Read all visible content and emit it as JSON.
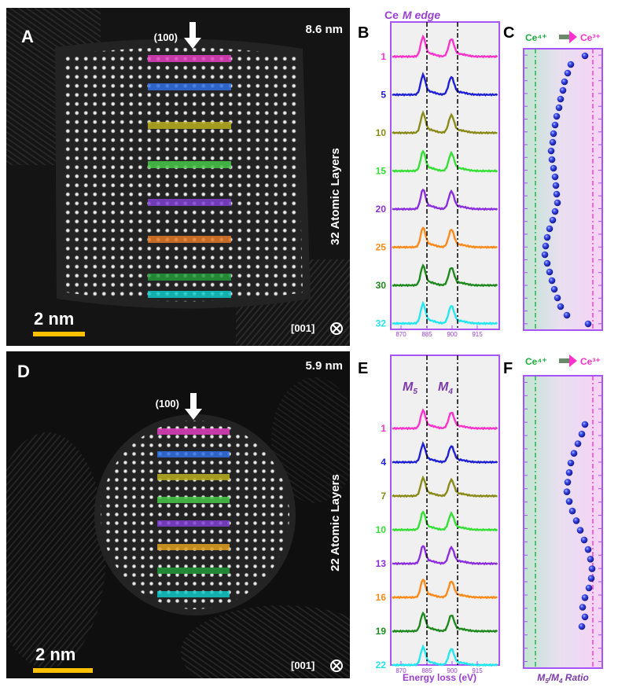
{
  "panels": {
    "A": {
      "letter": "A",
      "size_text": "8.6 nm",
      "direction": "(100)",
      "layers_text": "32 Atomic Layers",
      "scalebar_text": "2 nm",
      "zone_axis": "[001]",
      "stripe_colors": [
        "#e040c0",
        "#2f6fe0",
        "#b8b020",
        "#48c848",
        "#8040d0",
        "#e07828",
        "#229a3a",
        "#10c8c8"
      ]
    },
    "B": {
      "letter": "B",
      "title": "Ce",
      "title_em": "M edge",
      "x_ticks": [
        "870",
        "885",
        "900",
        "915"
      ],
      "spectra": [
        {
          "label": "1",
          "color": "#ff33cc"
        },
        {
          "label": "5",
          "color": "#1f1fd6"
        },
        {
          "label": "10",
          "color": "#8a8a18"
        },
        {
          "label": "15",
          "color": "#33e033"
        },
        {
          "label": "20",
          "color": "#8c2ee0"
        },
        {
          "label": "25",
          "color": "#ff8a1a"
        },
        {
          "label": "30",
          "color": "#1e8a1e"
        },
        {
          "label": "32",
          "color": "#22e6f0"
        }
      ]
    },
    "C": {
      "letter": "C",
      "ce4": "Ce⁴⁺",
      "ce3": "Ce³⁺"
    },
    "D": {
      "letter": "D",
      "size_text": "5.9 nm",
      "direction": "(100)",
      "layers_text": "22 Atomic Layers",
      "scalebar_text": "2 nm",
      "zone_axis": "[001]",
      "stripe_colors": [
        "#e040c0",
        "#2f6fe0",
        "#b8b020",
        "#48c848",
        "#8040d0",
        "#e0a020",
        "#229a3a",
        "#10c8c8"
      ]
    },
    "E": {
      "letter": "E",
      "peak1": "M",
      "peak1_sub": "5",
      "peak2": "M",
      "peak2_sub": "4",
      "x_ticks": [
        "870",
        "885",
        "900",
        "915"
      ],
      "xlabel": "Energy loss (eV)",
      "spectra": [
        {
          "label": "1",
          "color": "#ff33cc"
        },
        {
          "label": "4",
          "color": "#1f1fd6"
        },
        {
          "label": "7",
          "color": "#8a8a18"
        },
        {
          "label": "10",
          "color": "#33e033"
        },
        {
          "label": "13",
          "color": "#8c2ee0"
        },
        {
          "label": "16",
          "color": "#ff8a1a"
        },
        {
          "label": "19",
          "color": "#1e8a1e"
        },
        {
          "label": "22",
          "color": "#22e6f0"
        }
      ]
    },
    "F": {
      "letter": "F",
      "ce4": "Ce⁴⁺",
      "ce3": "Ce³⁺",
      "xlabel_m5": "M",
      "xlabel_sub5": "5",
      "xlabel_m4": "/M",
      "xlabel_sub4": "4",
      "xlabel_rest": " Ratio"
    }
  },
  "chart_data": [
    {
      "type": "scatter",
      "panel": "C",
      "xlabel": "",
      "ylabel": "",
      "x": [
        0.78,
        0.6,
        0.56,
        0.52,
        0.5,
        0.47,
        0.45,
        0.42,
        0.4,
        0.38,
        0.37,
        0.35,
        0.36,
        0.38,
        0.4,
        0.41,
        0.42,
        0.43,
        0.4,
        0.37,
        0.33,
        0.3,
        0.28,
        0.27,
        0.3,
        0.33,
        0.36,
        0.39,
        0.43,
        0.47,
        0.55,
        0.82
      ],
      "y": [
        1,
        2,
        3,
        4,
        5,
        6,
        7,
        8,
        9,
        10,
        11,
        12,
        13,
        14,
        15,
        16,
        17,
        18,
        19,
        20,
        21,
        22,
        23,
        24,
        25,
        26,
        27,
        28,
        29,
        30,
        31,
        32
      ]
    },
    {
      "type": "scatter",
      "panel": "F",
      "xlabel": "M5/M4 Ratio",
      "ylabel": "",
      "x": [
        0.78,
        0.74,
        0.69,
        0.64,
        0.6,
        0.58,
        0.56,
        0.55,
        0.58,
        0.62,
        0.67,
        0.72,
        0.77,
        0.82,
        0.85,
        0.87,
        0.86,
        0.83,
        0.78,
        0.75,
        0.78,
        0.74
      ],
      "y": [
        1,
        2,
        3,
        4,
        5,
        6,
        7,
        8,
        9,
        10,
        11,
        12,
        13,
        14,
        15,
        16,
        17,
        18,
        19,
        20,
        21,
        22
      ]
    }
  ]
}
